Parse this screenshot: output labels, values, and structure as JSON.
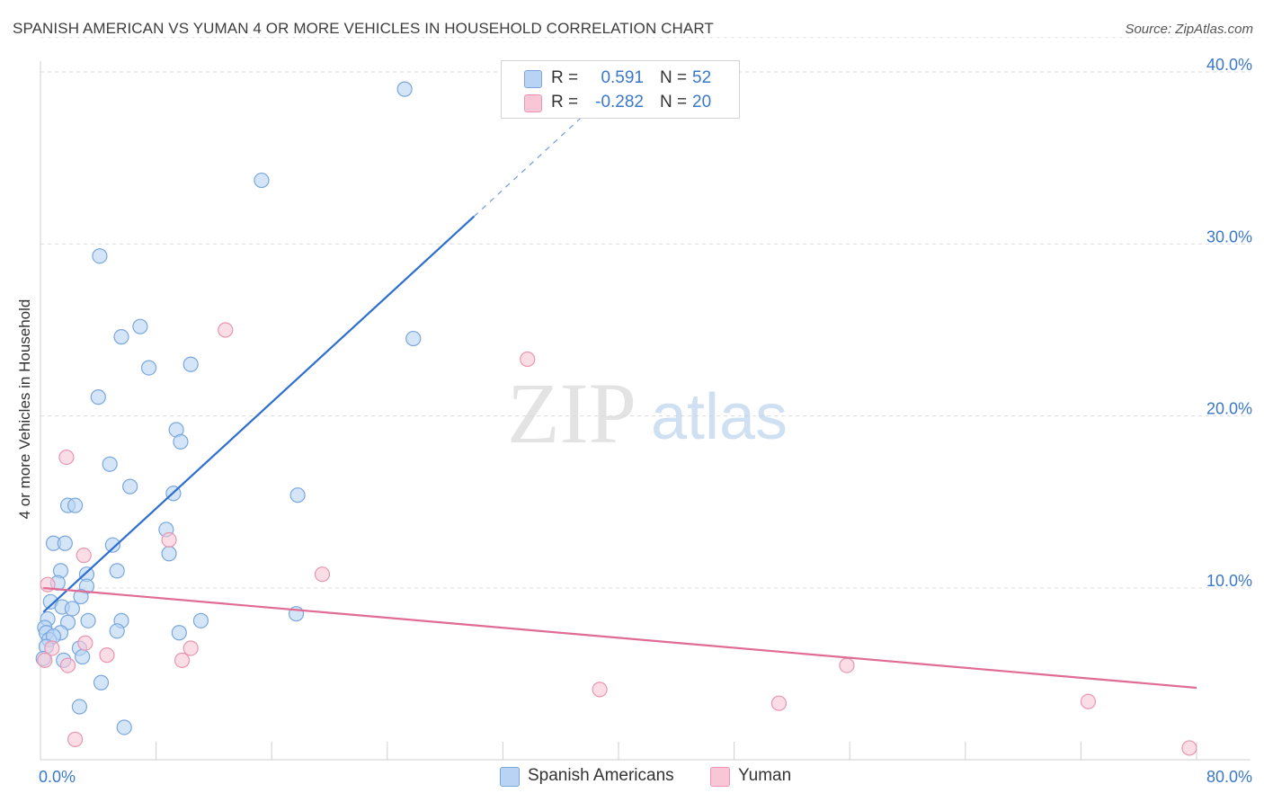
{
  "title": "SPANISH AMERICAN VS YUMAN 4 OR MORE VEHICLES IN HOUSEHOLD CORRELATION CHART",
  "source": "Source: ZipAtlas.com",
  "watermark": {
    "zip": "ZIP",
    "atlas": "atlas"
  },
  "colors": {
    "blue_fill": "#b8d3f3",
    "blue_stroke": "#7aa7dd",
    "blue_line": "#2c6fd1",
    "pink_fill": "#f9c6d6",
    "pink_stroke": "#e896b2",
    "pink_line": "#e06b95",
    "tick_text": "#3a78c9",
    "grid": "#dddddd"
  },
  "legend": {
    "rows": [
      {
        "r_label": "R =",
        "r_value": "0.591",
        "n_label": "N =",
        "n_value": "52",
        "swatch": "blue"
      },
      {
        "r_label": "R =",
        "r_value": "-0.282",
        "n_label": "N =",
        "n_value": "20",
        "swatch": "pink"
      }
    ]
  },
  "bottom_legend": [
    {
      "label": "Spanish Americans",
      "swatch": "blue"
    },
    {
      "label": "Yuman",
      "swatch": "pink"
    }
  ],
  "chart_data": {
    "type": "scatter",
    "xlabel": "",
    "ylabel": "4 or more Vehicles in Household",
    "xlim": [
      0,
      80
    ],
    "ylim": [
      0,
      42
    ],
    "x_tick_labels": [
      {
        "value": 0,
        "label": "0.0%"
      },
      {
        "value": 80,
        "label": "80.0%"
      }
    ],
    "y_tick_labels": [
      {
        "value": 10,
        "label": "10.0%"
      },
      {
        "value": 20,
        "label": "20.0%"
      },
      {
        "value": 30,
        "label": "30.0%"
      },
      {
        "value": 40,
        "label": "40.0%"
      }
    ],
    "x_minor_ticks": [
      8,
      16,
      24,
      32,
      40,
      48,
      56,
      64,
      72,
      80
    ],
    "series": [
      {
        "name": "Spanish Americans",
        "color": "blue",
        "r": 0.591,
        "n": 52,
        "points": [
          [
            25.2,
            39.0
          ],
          [
            15.3,
            33.7
          ],
          [
            4.1,
            29.3
          ],
          [
            6.9,
            25.2
          ],
          [
            5.6,
            24.6
          ],
          [
            10.4,
            23.0
          ],
          [
            7.5,
            22.8
          ],
          [
            25.8,
            24.5
          ],
          [
            4.0,
            21.1
          ],
          [
            9.4,
            19.2
          ],
          [
            9.7,
            18.5
          ],
          [
            4.8,
            17.2
          ],
          [
            6.2,
            15.9
          ],
          [
            9.2,
            15.5
          ],
          [
            17.8,
            15.4
          ],
          [
            1.9,
            14.8
          ],
          [
            2.4,
            14.8
          ],
          [
            8.7,
            13.4
          ],
          [
            0.9,
            12.6
          ],
          [
            1.7,
            12.6
          ],
          [
            5.0,
            12.5
          ],
          [
            8.9,
            12.0
          ],
          [
            1.4,
            11.0
          ],
          [
            5.3,
            11.0
          ],
          [
            3.2,
            10.8
          ],
          [
            1.2,
            10.3
          ],
          [
            3.2,
            10.1
          ],
          [
            2.8,
            9.5
          ],
          [
            0.7,
            9.2
          ],
          [
            1.5,
            8.9
          ],
          [
            2.2,
            8.8
          ],
          [
            0.5,
            8.2
          ],
          [
            3.3,
            8.1
          ],
          [
            1.9,
            8.0
          ],
          [
            5.6,
            8.1
          ],
          [
            11.1,
            8.1
          ],
          [
            17.7,
            8.5
          ],
          [
            0.3,
            7.7
          ],
          [
            0.4,
            7.4
          ],
          [
            1.4,
            7.4
          ],
          [
            5.3,
            7.5
          ],
          [
            9.6,
            7.4
          ],
          [
            0.6,
            7.0
          ],
          [
            0.9,
            7.2
          ],
          [
            0.4,
            6.6
          ],
          [
            2.7,
            6.5
          ],
          [
            2.9,
            6.0
          ],
          [
            1.6,
            5.8
          ],
          [
            0.2,
            5.9
          ],
          [
            4.2,
            4.5
          ],
          [
            2.7,
            3.1
          ],
          [
            5.8,
            1.9
          ]
        ]
      },
      {
        "name": "Yuman",
        "color": "pink",
        "r": -0.282,
        "n": 20,
        "points": [
          [
            12.8,
            25.0
          ],
          [
            33.7,
            23.3
          ],
          [
            1.8,
            17.6
          ],
          [
            3.0,
            11.9
          ],
          [
            8.9,
            12.8
          ],
          [
            19.5,
            10.8
          ],
          [
            0.5,
            10.2
          ],
          [
            0.8,
            6.5
          ],
          [
            3.1,
            6.8
          ],
          [
            4.6,
            6.1
          ],
          [
            10.4,
            6.5
          ],
          [
            9.8,
            5.8
          ],
          [
            0.3,
            5.8
          ],
          [
            1.9,
            5.5
          ],
          [
            55.8,
            5.5
          ],
          [
            38.7,
            4.1
          ],
          [
            51.1,
            3.3
          ],
          [
            72.5,
            3.4
          ],
          [
            2.4,
            1.2
          ],
          [
            79.5,
            0.7
          ]
        ]
      }
    ],
    "trendlines": [
      {
        "series": "Spanish Americans",
        "x": [
          0.2,
          30.0
        ],
        "y": [
          8.6,
          31.6
        ],
        "dashed_extension_to": [
          38.0,
          37.8
        ]
      },
      {
        "series": "Yuman",
        "x": [
          0.2,
          80.0
        ],
        "y": [
          10.0,
          4.2
        ]
      }
    ]
  }
}
